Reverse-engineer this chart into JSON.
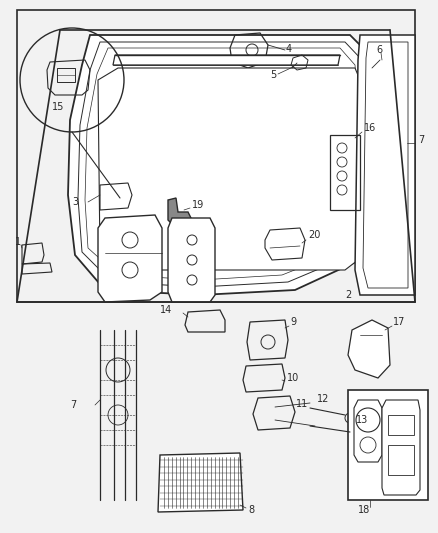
{
  "bg_color": "#f2f2f2",
  "line_color": "#2a2a2a",
  "font_size": 7,
  "fig_w": 4.38,
  "fig_h": 5.33,
  "dpi": 100
}
